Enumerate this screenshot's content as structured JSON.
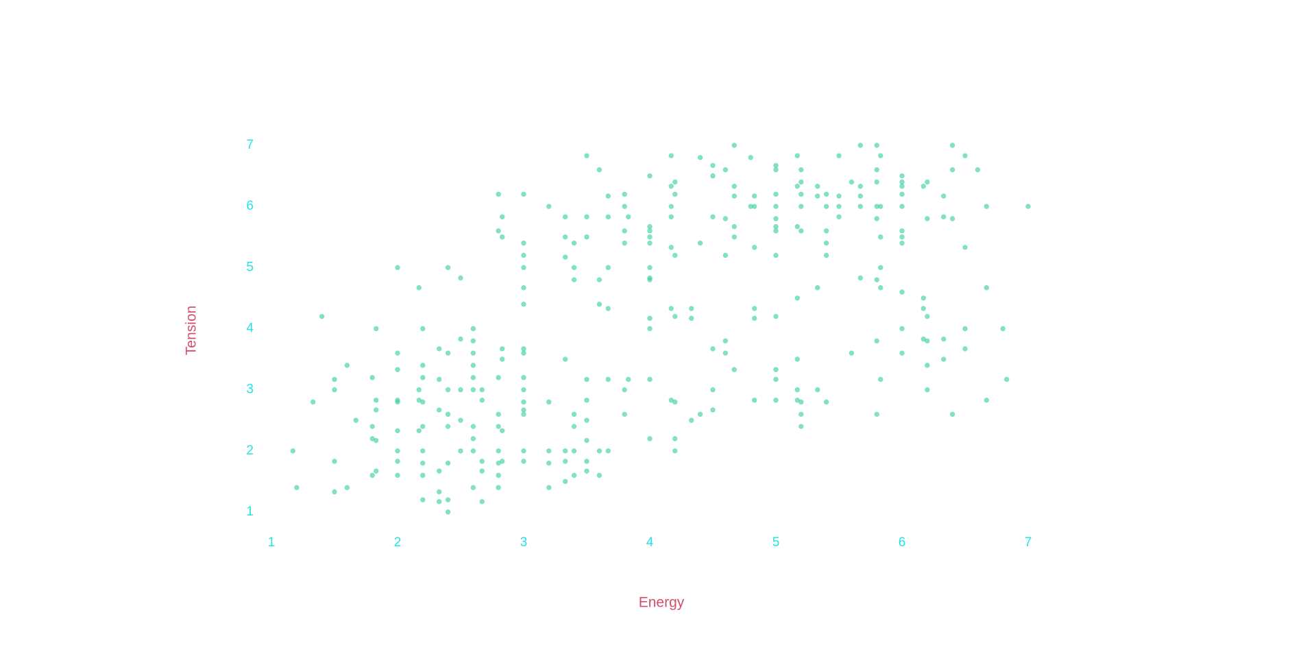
{
  "chart_data": {
    "type": "scatter",
    "x_label": "Energy",
    "y_label": "Tension",
    "color": "#3ecfa8",
    "xlim": [
      1,
      7
    ],
    "ylim": [
      1,
      7
    ],
    "xticks": [
      1,
      2,
      3,
      4,
      5,
      6,
      7
    ],
    "yticks": [
      1,
      2,
      3,
      4,
      5,
      6,
      7
    ],
    "x": [
      1.17,
      1.2,
      1.33,
      1.4,
      1.5,
      1.5,
      1.5,
      1.5,
      1.6,
      1.6,
      1.67,
      1.8,
      1.8,
      1.8,
      1.8,
      1.83,
      1.83,
      1.83,
      1.83,
      1.83,
      2,
      2,
      2,
      2,
      2,
      2,
      2,
      2,
      2,
      2.17,
      2.17,
      2.17,
      2.17,
      2.2,
      2.2,
      2.2,
      2.2,
      2.2,
      2.2,
      2.2,
      2.2,
      2.2,
      2.33,
      2.33,
      2.33,
      2.33,
      2.33,
      2.33,
      2.4,
      2.4,
      2.4,
      2.4,
      2.4,
      2.4,
      2.4,
      2.4,
      2.5,
      2.5,
      2.5,
      2.5,
      2.5,
      2.6,
      2.6,
      2.6,
      2.6,
      2.6,
      2.6,
      2.6,
      2.6,
      2.6,
      2.6,
      2.67,
      2.67,
      2.67,
      2.67,
      2.67,
      2.8,
      2.8,
      2.8,
      2.8,
      2.8,
      2.8,
      2.8,
      2.8,
      2.8,
      2.83,
      2.83,
      2.83,
      2.83,
      2.83,
      2.83,
      3,
      3,
      3,
      3,
      3,
      3,
      3,
      3,
      3,
      3,
      3,
      3,
      3,
      3,
      3,
      3.2,
      3.2,
      3.2,
      3.2,
      3.2,
      3.33,
      3.33,
      3.33,
      3.33,
      3.33,
      3.33,
      3.33,
      3.4,
      3.4,
      3.4,
      3.4,
      3.4,
      3.4,
      3.4,
      3.5,
      3.5,
      3.5,
      3.5,
      3.5,
      3.5,
      3.5,
      3.5,
      3.5,
      3.6,
      3.6,
      3.6,
      3.6,
      3.6,
      3.67,
      3.67,
      3.67,
      3.67,
      3.67,
      3.67,
      3.8,
      3.8,
      3.8,
      3.8,
      3.8,
      3.8,
      3.83,
      3.83,
      4,
      4,
      4,
      4,
      4,
      4,
      4,
      4,
      4,
      4,
      4,
      4,
      4.17,
      4.17,
      4.17,
      4.17,
      4.17,
      4.17,
      4.17,
      4.2,
      4.2,
      4.2,
      4.2,
      4.2,
      4.2,
      4.2,
      4.33,
      4.33,
      4.33,
      4.4,
      4.4,
      4.4,
      4.5,
      4.5,
      4.5,
      4.5,
      4.5,
      4.5,
      4.6,
      4.6,
      4.6,
      4.6,
      4.6,
      4.67,
      4.67,
      4.67,
      4.67,
      4.67,
      4.67,
      4.8,
      4.8,
      4.83,
      4.83,
      4.83,
      4.83,
      4.83,
      4.83,
      5,
      5,
      5,
      5,
      5,
      5,
      5,
      5,
      5,
      5,
      5,
      5,
      5.17,
      5.17,
      5.17,
      5.17,
      5.17,
      5.17,
      5.17,
      5.2,
      5.2,
      5.2,
      5.2,
      5.2,
      5.2,
      5.2,
      5.2,
      5.33,
      5.33,
      5.33,
      5.33,
      5.4,
      5.4,
      5.4,
      5.4,
      5.4,
      5.4,
      5.5,
      5.5,
      5.5,
      5.5,
      5.6,
      5.6,
      5.67,
      5.67,
      5.67,
      5.67,
      5.67,
      5.8,
      5.8,
      5.8,
      5.8,
      5.8,
      5.8,
      5.8,
      5.8,
      5.83,
      5.83,
      5.83,
      5.83,
      5.83,
      5.83,
      6,
      6,
      6,
      6,
      6,
      6,
      6,
      6,
      6,
      6,
      6,
      6.17,
      6.17,
      6.17,
      6.17,
      6.2,
      6.2,
      6.2,
      6.2,
      6.2,
      6.2,
      6.33,
      6.33,
      6.33,
      6.33,
      6.4,
      6.4,
      6.4,
      6.4,
      6.5,
      6.5,
      6.5,
      6.5,
      6.6,
      6.67,
      6.67,
      6.67,
      6.8,
      6.83,
      7
    ],
    "values": [
      2.0,
      1.4,
      2.8,
      4.2,
      3.17,
      3.0,
      1.83,
      1.33,
      3.4,
      1.4,
      2.5,
      3.2,
      2.4,
      2.2,
      1.6,
      4.0,
      2.83,
      2.67,
      2.17,
      1.67,
      5,
      3.6,
      3.33,
      2.83,
      2.8,
      2.33,
      2,
      1.83,
      1.6,
      4.67,
      3,
      2.83,
      2.33,
      4,
      3.4,
      3.2,
      2.8,
      2.4,
      2,
      1.8,
      1.6,
      1.2,
      3.67,
      3.17,
      2.67,
      1.67,
      1.33,
      1.17,
      5,
      3.6,
      3,
      2.6,
      2.4,
      1.8,
      1.2,
      1,
      4.83,
      3.83,
      3,
      2.5,
      2,
      4,
      3.8,
      3.6,
      3.4,
      3.2,
      3,
      2.4,
      2.2,
      2,
      1.4,
      3,
      2.83,
      1.83,
      1.67,
      1.17,
      6.2,
      5.6,
      3.2,
      2.6,
      2.4,
      2,
      1.8,
      1.6,
      1.4,
      5.83,
      5.5,
      3.67,
      3.5,
      2.33,
      1.83,
      6.2,
      5.4,
      5.2,
      5,
      4.67,
      4.4,
      3.67,
      3.6,
      3.2,
      3,
      2.8,
      2.67,
      2.6,
      2,
      1.83,
      6,
      2.8,
      2,
      1.8,
      1.4,
      5.83,
      5.5,
      5.17,
      3.5,
      2,
      1.83,
      1.5,
      5.4,
      5,
      4.8,
      2.6,
      2.4,
      2,
      1.6,
      6.83,
      5.83,
      5.5,
      3.17,
      2.83,
      2.5,
      2.17,
      1.83,
      1.67,
      6.6,
      4.8,
      4.4,
      2,
      1.6,
      6.17,
      5.83,
      5,
      4.33,
      3.17,
      2,
      6.2,
      6,
      5.6,
      5.4,
      3,
      2.6,
      5.83,
      3.17,
      6.5,
      5.67,
      5.6,
      5.5,
      5.4,
      5,
      4.83,
      4.8,
      4.17,
      4,
      3.17,
      2.2,
      6.83,
      6.33,
      6,
      5.83,
      5.33,
      4.33,
      2.83,
      6.4,
      6.2,
      5.2,
      4.2,
      2.8,
      2.2,
      2,
      4.33,
      4.17,
      2.5,
      6.8,
      5.4,
      2.6,
      6.67,
      6.5,
      5.83,
      3.67,
      3,
      2.67,
      6.6,
      5.8,
      5.2,
      3.8,
      3.6,
      7,
      6.33,
      6.17,
      5.67,
      5.5,
      3.33,
      6.8,
      6,
      6.17,
      6,
      5.33,
      4.33,
      4.17,
      2.83,
      6.67,
      6.6,
      6.2,
      6,
      5.8,
      5.67,
      5.6,
      5.2,
      4.2,
      3.33,
      3.17,
      2.83,
      6.83,
      6.33,
      5.67,
      4.5,
      3.5,
      3,
      2.83,
      6.6,
      6.4,
      6.2,
      6,
      5.6,
      2.8,
      2.6,
      2.4,
      6.33,
      6.17,
      4.67,
      3,
      6.2,
      6,
      5.6,
      5.4,
      5.2,
      2.8,
      6.83,
      6.17,
      6,
      5.83,
      6.4,
      3.6,
      7,
      6.33,
      6.17,
      6,
      4.83,
      7,
      6.6,
      6.4,
      6,
      5.8,
      4.8,
      3.8,
      2.6,
      6.83,
      6,
      5.5,
      5,
      4.67,
      3.17,
      6.5,
      6.4,
      6.33,
      6.2,
      6,
      5.6,
      5.5,
      5.4,
      4.6,
      4,
      3.6,
      6.33,
      4.5,
      4.33,
      3.83,
      6.4,
      5.8,
      4.2,
      3.8,
      3.4,
      3,
      6.17,
      5.83,
      3.83,
      3.5,
      7,
      6.6,
      5.8,
      2.6,
      6.83,
      5.33,
      4,
      3.67,
      6.6,
      6,
      4.67,
      2.83,
      4,
      3.17,
      6
    ]
  }
}
